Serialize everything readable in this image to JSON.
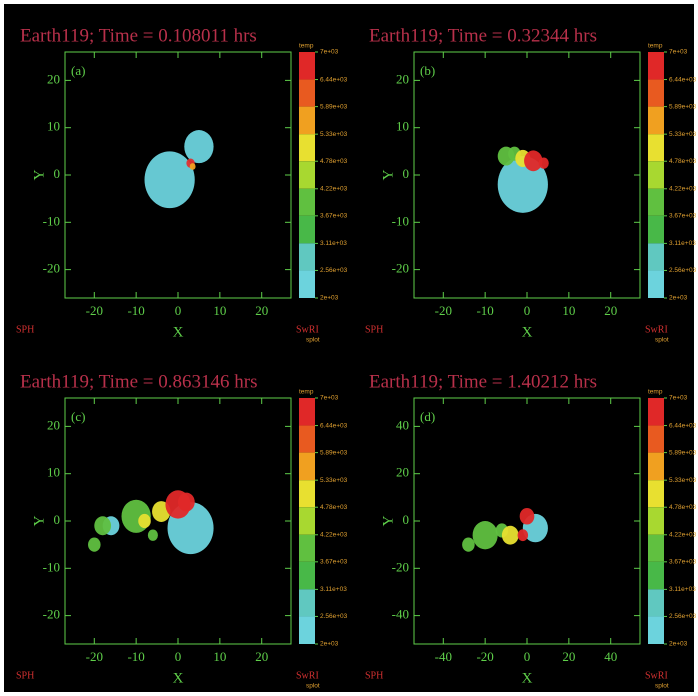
{
  "chart_data": [
    {
      "type": "scatter",
      "title": "Earth119; Time = 0.108011 hrs",
      "panel_label": "(a)",
      "xlabel": "X",
      "ylabel": "Y",
      "xlim": [
        -27,
        27
      ],
      "ylim": [
        -26,
        26
      ],
      "xticks": [
        -20,
        -10,
        0,
        10,
        20
      ],
      "yticks": [
        -20,
        -10,
        0,
        10,
        20
      ],
      "series": [
        {
          "color": "#6cd3dd",
          "x": [
            -2,
            5
          ],
          "y": [
            -1,
            6
          ],
          "sizes": [
            6,
            3.5
          ]
        },
        {
          "color": "#e03030",
          "x": [
            3
          ],
          "y": [
            2.5
          ],
          "sizes": [
            1
          ]
        },
        {
          "color": "#f0a020",
          "x": [
            3.5
          ],
          "y": [
            1.8
          ],
          "sizes": [
            0.7
          ]
        }
      ],
      "colorbar": {
        "title": "temp",
        "ticks": [
          {
            "value": 7000,
            "label": "7e+03"
          },
          {
            "value": 6440,
            "label": "6.44e+03"
          },
          {
            "value": 5890,
            "label": "5.89e+03"
          },
          {
            "value": 5330,
            "label": "5.33e+03"
          },
          {
            "value": 4780,
            "label": "4.78e+03"
          },
          {
            "value": 4220,
            "label": "4.22e+03"
          },
          {
            "value": 3670,
            "label": "3.67e+03"
          },
          {
            "value": 3110,
            "label": "3.11e+03"
          },
          {
            "value": 2560,
            "label": "2.56e+03"
          },
          {
            "value": 2000,
            "label": "2e+03"
          }
        ],
        "colors": [
          "#e02828",
          "#e85a20",
          "#f0a020",
          "#e8e030",
          "#a8d830",
          "#60c040",
          "#48b848",
          "#60c8c0",
          "#6cd3dd"
        ]
      },
      "left_note": "SPH",
      "right_note": "SwRI",
      "right_subnote": "splot"
    },
    {
      "type": "scatter",
      "title": "Earth119; Time = 0.32344 hrs",
      "panel_label": "(b)",
      "xlabel": "X",
      "ylabel": "Y",
      "xlim": [
        -27,
        27
      ],
      "ylim": [
        -26,
        26
      ],
      "xticks": [
        -20,
        -10,
        0,
        10,
        20
      ],
      "yticks": [
        -20,
        -10,
        0,
        10,
        20
      ],
      "series": [
        {
          "color": "#6cd3dd",
          "x": [
            -1
          ],
          "y": [
            -2
          ],
          "sizes": [
            6
          ]
        },
        {
          "color": "#60c040",
          "x": [
            -5,
            -3
          ],
          "y": [
            4,
            4.5
          ],
          "sizes": [
            2,
            1.5
          ]
        },
        {
          "color": "#e8e030",
          "x": [
            -1
          ],
          "y": [
            3.5
          ],
          "sizes": [
            1.8
          ]
        },
        {
          "color": "#e02828",
          "x": [
            1.5,
            4
          ],
          "y": [
            3,
            2.5
          ],
          "sizes": [
            2.2,
            1.2
          ]
        }
      ],
      "colorbar": {
        "title": "temp",
        "ticks": [
          {
            "value": 7000,
            "label": "7e+03"
          },
          {
            "value": 6440,
            "label": "6.44e+03"
          },
          {
            "value": 5890,
            "label": "5.89e+03"
          },
          {
            "value": 5330,
            "label": "5.33e+03"
          },
          {
            "value": 4780,
            "label": "4.78e+03"
          },
          {
            "value": 4220,
            "label": "4.22e+03"
          },
          {
            "value": 3670,
            "label": "3.67e+03"
          },
          {
            "value": 3110,
            "label": "3.11e+03"
          },
          {
            "value": 2560,
            "label": "2.56e+03"
          },
          {
            "value": 2000,
            "label": "2e+03"
          }
        ],
        "colors": [
          "#e02828",
          "#e85a20",
          "#f0a020",
          "#e8e030",
          "#a8d830",
          "#60c040",
          "#48b848",
          "#60c8c0",
          "#6cd3dd"
        ]
      },
      "left_note": "SPH",
      "right_note": "SwRI",
      "right_subnote": "splot"
    },
    {
      "type": "scatter",
      "title": "Earth119; Time = 0.863146 hrs",
      "panel_label": "(c)",
      "xlabel": "X",
      "ylabel": "Y",
      "xlim": [
        -27,
        27
      ],
      "ylim": [
        -26,
        26
      ],
      "xticks": [
        -20,
        -10,
        0,
        10,
        20
      ],
      "yticks": [
        -20,
        -10,
        0,
        10,
        20
      ],
      "series": [
        {
          "color": "#6cd3dd",
          "x": [
            3,
            -16
          ],
          "y": [
            -1.5,
            -1
          ],
          "sizes": [
            5.5,
            2
          ]
        },
        {
          "color": "#60c040",
          "x": [
            -10,
            -18,
            -20,
            -6
          ],
          "y": [
            1,
            -1,
            -5,
            -3
          ],
          "sizes": [
            3.5,
            2,
            1.5,
            1.2
          ]
        },
        {
          "color": "#e8e030",
          "x": [
            -4,
            -8
          ],
          "y": [
            2,
            0
          ],
          "sizes": [
            2.2,
            1.5
          ]
        },
        {
          "color": "#e02828",
          "x": [
            0,
            2
          ],
          "y": [
            3.5,
            4
          ],
          "sizes": [
            3,
            2
          ]
        }
      ],
      "colorbar": {
        "title": "temp",
        "ticks": [
          {
            "value": 7000,
            "label": "7e+03"
          },
          {
            "value": 6440,
            "label": "6.44e+03"
          },
          {
            "value": 5890,
            "label": "5.89e+03"
          },
          {
            "value": 5330,
            "label": "5.33e+03"
          },
          {
            "value": 4780,
            "label": "4.78e+03"
          },
          {
            "value": 4220,
            "label": "4.22e+03"
          },
          {
            "value": 3670,
            "label": "3.67e+03"
          },
          {
            "value": 3110,
            "label": "3.11e+03"
          },
          {
            "value": 2560,
            "label": "2.56e+03"
          },
          {
            "value": 2000,
            "label": "2e+03"
          }
        ],
        "colors": [
          "#e02828",
          "#e85a20",
          "#f0a020",
          "#e8e030",
          "#a8d830",
          "#60c040",
          "#48b848",
          "#60c8c0",
          "#6cd3dd"
        ]
      },
      "left_note": "SPH",
      "right_note": "SwRI",
      "right_subnote": "splot"
    },
    {
      "type": "scatter",
      "title": "Earth119; Time = 1.40212 hrs",
      "panel_label": "(d)",
      "xlabel": "X",
      "ylabel": "Y",
      "xlim": [
        -54,
        54
      ],
      "ylim": [
        -52,
        52
      ],
      "xticks": [
        -40,
        -20,
        0,
        20,
        40
      ],
      "yticks": [
        -40,
        -20,
        0,
        20,
        40
      ],
      "series": [
        {
          "color": "#6cd3dd",
          "x": [
            4
          ],
          "y": [
            -3
          ],
          "sizes": [
            6
          ]
        },
        {
          "color": "#60c040",
          "x": [
            -20,
            -28,
            -12
          ],
          "y": [
            -6,
            -10,
            -4
          ],
          "sizes": [
            6,
            3,
            3
          ]
        },
        {
          "color": "#e8e030",
          "x": [
            -8
          ],
          "y": [
            -6
          ],
          "sizes": [
            4
          ]
        },
        {
          "color": "#e02828",
          "x": [
            0,
            -2
          ],
          "y": [
            2,
            -6
          ],
          "sizes": [
            3.5,
            2.5
          ]
        }
      ],
      "colorbar": {
        "title": "temp",
        "ticks": [
          {
            "value": 7000,
            "label": "7e+03"
          },
          {
            "value": 6440,
            "label": "6.44e+03"
          },
          {
            "value": 5890,
            "label": "5.89e+03"
          },
          {
            "value": 5330,
            "label": "5.33e+03"
          },
          {
            "value": 4780,
            "label": "4.78e+03"
          },
          {
            "value": 4220,
            "label": "4.22e+03"
          },
          {
            "value": 3670,
            "label": "3.67e+03"
          },
          {
            "value": 3110,
            "label": "3.11e+03"
          },
          {
            "value": 2560,
            "label": "2.56e+03"
          },
          {
            "value": 2000,
            "label": "2e+03"
          }
        ],
        "colors": [
          "#e02828",
          "#e85a20",
          "#f0a020",
          "#e8e030",
          "#a8d830",
          "#60c040",
          "#48b848",
          "#60c8c0",
          "#6cd3dd"
        ]
      },
      "left_note": "SPH",
      "right_note": "SwRI",
      "right_subnote": "splot"
    }
  ]
}
